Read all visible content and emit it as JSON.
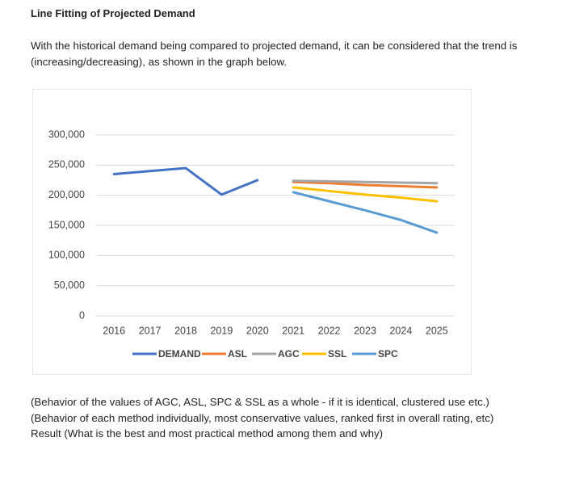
{
  "heading": "Line Fitting of Projected Demand",
  "intro": "With the historical demand being compared to projected demand, it can be considered that the trend is (increasing/decreasing), as shown in the graph below.",
  "chart_data": {
    "type": "line",
    "categories": [
      "2016",
      "2017",
      "2018",
      "2019",
      "2020",
      "2021",
      "2022",
      "2023",
      "2024",
      "2025"
    ],
    "series": [
      {
        "name": "DEMAND",
        "color": "#4472c4",
        "values": [
          235000,
          240000,
          245000,
          201000,
          225000,
          null,
          null,
          null,
          null,
          null
        ]
      },
      {
        "name": "ASL",
        "color": "#ed7d31",
        "values": [
          null,
          null,
          null,
          null,
          null,
          222000,
          220000,
          217000,
          215000,
          213000
        ]
      },
      {
        "name": "AGC",
        "color": "#a5a5a5",
        "values": [
          null,
          null,
          null,
          null,
          null,
          224000,
          223000,
          222000,
          221000,
          220000
        ]
      },
      {
        "name": "SSL",
        "color": "#ffc000",
        "values": [
          null,
          null,
          null,
          null,
          null,
          213000,
          207000,
          201000,
          196000,
          190000
        ]
      },
      {
        "name": "SPC",
        "color": "#5b9bd5",
        "values": [
          null,
          null,
          null,
          null,
          null,
          205000,
          190000,
          175000,
          159000,
          138000
        ]
      }
    ],
    "ylim": [
      0,
      300000
    ],
    "yticks": [
      0,
      {
        "value": 50000,
        "label": "50,000"
      },
      {
        "value": 100000,
        "label": "100,000"
      },
      {
        "value": 150000,
        "label": "150,000"
      },
      {
        "value": 200000,
        "label": "200,000"
      },
      {
        "value": 250000,
        "label": "250,000"
      },
      {
        "value": 300000,
        "label": "300,000"
      }
    ],
    "grid": true,
    "legend": "bottom"
  },
  "notes": [
    "(Behavior of the values of AGC, ASL, SPC & SSL as a whole - if it is identical, clustered use etc.)",
    "(Behavior of each method individually, most conservative values, ranked first in overall rating, etc)",
    "Result (What is the best and most practical method among them and why)"
  ]
}
